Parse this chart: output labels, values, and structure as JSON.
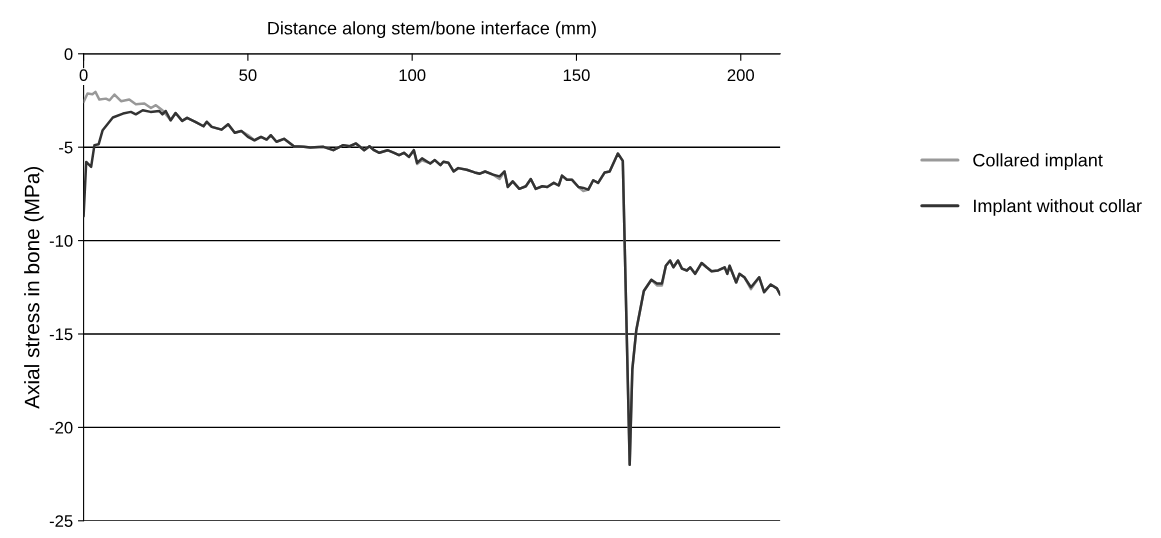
{
  "chart_data": {
    "type": "line",
    "xlabel": "Distance along stem/bone interface (mm)",
    "ylabel": "Axial stress in bone (MPa)",
    "xlim": [
      0,
      212
    ],
    "xticks": [
      0,
      50,
      100,
      150,
      200
    ],
    "ylim": [
      -25,
      0
    ],
    "yticks": [
      -25,
      -20,
      -15,
      -10,
      -5,
      0
    ],
    "grid": "y",
    "legend": "right",
    "line_style": "solid",
    "marker": "none",
    "series": [
      {
        "name": "Collared implant",
        "color": "#999999",
        "x": [
          0,
          1.2,
          2.7,
          3.6,
          4.8,
          6.8,
          7.9,
          9.4,
          11.4,
          13.9,
          15.9,
          18.5,
          20.5,
          22,
          24,
          26.5,
          28,
          30,
          31.5,
          34,
          36.5,
          37.5,
          39,
          42,
          44,
          46,
          48,
          50,
          52,
          54,
          55.7,
          57,
          58.7,
          61,
          64,
          67,
          69,
          73,
          76,
          79,
          81,
          82.9,
          85.4,
          87,
          88.4,
          90,
          92.5,
          94.5,
          96,
          97.5,
          99,
          100.5,
          101.5,
          103,
          105.5,
          106.9,
          108.6,
          109.5,
          111,
          112.6,
          114,
          116.6,
          119,
          120.6,
          122.2,
          124.6,
          126.6,
          128.1,
          129.1,
          130.6,
          132.6,
          134.6,
          136.1,
          137.6,
          139.6,
          141.1,
          143.1,
          144.6,
          145.6,
          147.1,
          148.6,
          150.6,
          152.1,
          153.6,
          155.1,
          156.6,
          158.6,
          160.1,
          162.6,
          164.1,
          166.2,
          167,
          168.2,
          170.5,
          172.8,
          174.5,
          176,
          177.2,
          178.5,
          179.5,
          180.9,
          182.1,
          183.6,
          184.6,
          186.1,
          188.1,
          189.6,
          191.1,
          193.1,
          195.1,
          195.9,
          196.6,
          198.6,
          199.6,
          201.1,
          203.1,
          205.6,
          207.1,
          209.1,
          211,
          212
        ],
        "values": [
          -2.58,
          -2.13,
          -2.17,
          -2.04,
          -2.45,
          -2.4,
          -2.49,
          -2.18,
          -2.54,
          -2.45,
          -2.7,
          -2.66,
          -2.9,
          -2.75,
          -3.02,
          -3.56,
          -3.17,
          -3.59,
          -3.43,
          -3.64,
          -3.88,
          -3.64,
          -3.91,
          -4.06,
          -3.77,
          -4.23,
          -4.13,
          -4.35,
          -4.63,
          -4.45,
          -4.59,
          -4.36,
          -4.71,
          -4.55,
          -4.95,
          -4.98,
          -5.02,
          -4.98,
          -5.16,
          -4.89,
          -4.95,
          -4.8,
          -5.16,
          -4.95,
          -5.16,
          -5.3,
          -5.16,
          -5.3,
          -5.43,
          -5.3,
          -5.52,
          -5.16,
          -5.9,
          -5.7,
          -5.87,
          -5.69,
          -5.96,
          -5.78,
          -5.83,
          -6.3,
          -6.12,
          -6.21,
          -6.35,
          -6.42,
          -6.3,
          -6.47,
          -6.7,
          -6.3,
          -7.13,
          -6.83,
          -7.23,
          -7.09,
          -6.7,
          -7.23,
          -7.09,
          -7.13,
          -6.91,
          -7.05,
          -6.52,
          -6.74,
          -6.74,
          -7.13,
          -7.35,
          -7.27,
          -6.77,
          -6.91,
          -6.35,
          -6.3,
          -5.34,
          -5.73,
          -22,
          -16.9,
          -14.8,
          -12.7,
          -12.1,
          -12.4,
          -12.4,
          -11.35,
          -11.07,
          -11.43,
          -11.07,
          -11.5,
          -11.6,
          -11.43,
          -11.78,
          -11.2,
          -11.43,
          -11.64,
          -11.6,
          -11.43,
          -11.78,
          -11.35,
          -12.24,
          -11.78,
          -11.96,
          -12.6,
          -11.96,
          -12.76,
          -12.35,
          -12.56,
          -12.9
        ]
      },
      {
        "name": "Implant without collar",
        "color": "#333333",
        "x": [
          0,
          0.8,
          2.3,
          3.3,
          4.6,
          5.8,
          8.9,
          12,
          14.4,
          15.9,
          18,
          20.4,
          23,
          24,
          25,
          26.5,
          28,
          30,
          31.5,
          34,
          36.5,
          37.5,
          39,
          42,
          44,
          46,
          48,
          50,
          52,
          54,
          55.7,
          57,
          58.7,
          61,
          64,
          67,
          69,
          73,
          76,
          79,
          81,
          82.9,
          85.4,
          87,
          88.4,
          90,
          92.5,
          94.5,
          96,
          97.5,
          99,
          100.5,
          101.5,
          103,
          105.5,
          106.9,
          108.6,
          109.5,
          111,
          112.6,
          114,
          116.6,
          119,
          120.6,
          122.2,
          124.6,
          126.6,
          128.1,
          129.1,
          130.6,
          132.6,
          134.6,
          136.1,
          137.6,
          139.6,
          141.1,
          143.1,
          144.6,
          145.6,
          147.1,
          148.6,
          150.6,
          152.1,
          153.6,
          155.1,
          156.6,
          158.6,
          160.1,
          162.6,
          164.1,
          166.2,
          167,
          168.2,
          170.5,
          172.8,
          174.5,
          176,
          177.2,
          178.5,
          179.5,
          180.9,
          182.1,
          183.6,
          184.6,
          186.1,
          188.1,
          189.6,
          191.1,
          193.1,
          195.1,
          195.9,
          196.6,
          198.6,
          199.6,
          201.1,
          203.1,
          205.6,
          207.1,
          209.1,
          211,
          212
        ],
        "values": [
          -8.7,
          -5.79,
          -6.05,
          -4.89,
          -4.84,
          -4.09,
          -3.41,
          -3.2,
          -3.11,
          -3.24,
          -3.02,
          -3.11,
          -3.06,
          -3.24,
          -3.06,
          -3.56,
          -3.17,
          -3.59,
          -3.43,
          -3.64,
          -3.88,
          -3.64,
          -3.91,
          -4.06,
          -3.77,
          -4.23,
          -4.13,
          -4.45,
          -4.63,
          -4.45,
          -4.59,
          -4.36,
          -4.71,
          -4.55,
          -4.95,
          -4.98,
          -5.02,
          -4.98,
          -5.16,
          -4.89,
          -4.95,
          -4.8,
          -5.16,
          -4.95,
          -5.16,
          -5.3,
          -5.16,
          -5.3,
          -5.43,
          -5.3,
          -5.52,
          -5.16,
          -5.84,
          -5.6,
          -5.87,
          -5.69,
          -5.96,
          -5.78,
          -5.83,
          -6.3,
          -6.12,
          -6.21,
          -6.35,
          -6.42,
          -6.3,
          -6.47,
          -6.56,
          -6.3,
          -7.13,
          -6.83,
          -7.23,
          -7.09,
          -6.7,
          -7.23,
          -7.09,
          -7.13,
          -6.91,
          -7.05,
          -6.52,
          -6.74,
          -6.74,
          -7.13,
          -7.18,
          -7.27,
          -6.77,
          -6.91,
          -6.35,
          -6.3,
          -5.34,
          -5.73,
          -22,
          -16.9,
          -14.8,
          -12.7,
          -12.1,
          -12.3,
          -12.3,
          -11.35,
          -11.07,
          -11.43,
          -11.07,
          -11.5,
          -11.6,
          -11.43,
          -11.78,
          -11.2,
          -11.43,
          -11.64,
          -11.6,
          -11.43,
          -11.78,
          -11.35,
          -12.24,
          -11.78,
          -11.96,
          -12.5,
          -11.96,
          -12.76,
          -12.35,
          -12.56,
          -12.9
        ]
      }
    ]
  }
}
